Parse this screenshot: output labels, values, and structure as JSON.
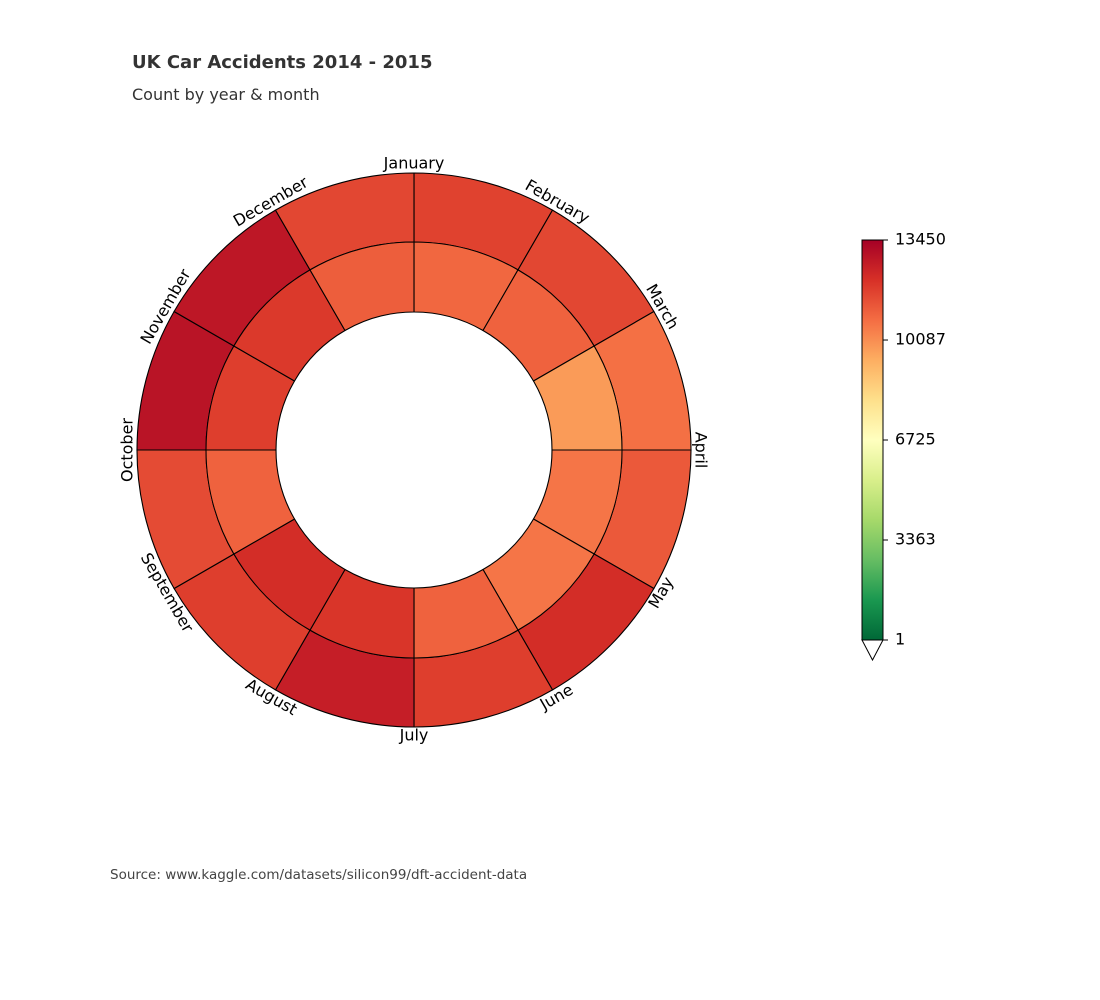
{
  "chart_data": {
    "type": "heatmap",
    "title": "UK Car Accidents 2014 - 2015",
    "subtitle": "Count by year & month",
    "source": "Source: www.kaggle.com/datasets/silicon99/dft-accident-data",
    "categories": [
      "January",
      "February",
      "March",
      "April",
      "May",
      "June",
      "July",
      "August",
      "September",
      "October",
      "November",
      "December"
    ],
    "series": [
      {
        "values": [
          11700,
          11600,
          10700,
          11200,
          12200,
          11800,
          12600,
          11800,
          11500,
          12900,
          12800,
          11600
        ]
      },
      {
        "values": [
          10900,
          11000,
          9800,
          10600,
          10600,
          11000,
          12000,
          12200,
          11000,
          11800,
          11900,
          11100
        ]
      }
    ],
    "colorbar": {
      "min": 1,
      "max": 13450,
      "ticks": [
        "13450",
        "10087",
        "6725",
        "3363",
        "1"
      ],
      "tick_values": [
        13450,
        10087,
        6725,
        3363,
        1
      ],
      "extend": "min",
      "colormap": "RdYlGn_r",
      "stops": [
        "#006837",
        "#1a9850",
        "#66bd63",
        "#a6d96a",
        "#d9ef8b",
        "#ffffbf",
        "#fee08b",
        "#fdae61",
        "#f46d43",
        "#d73027",
        "#a50026"
      ]
    }
  }
}
